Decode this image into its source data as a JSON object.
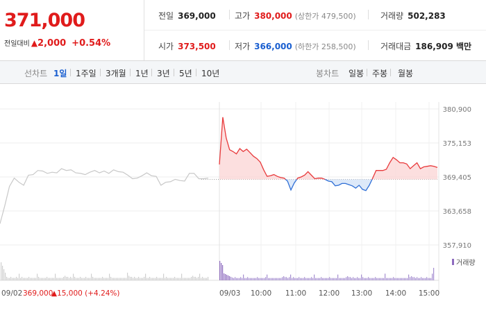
{
  "summary": {
    "price": "371,000",
    "change_label": "전일대비",
    "change_arrow": "▲",
    "change_value": "2,000",
    "change_pct": "+0.54%"
  },
  "stats": {
    "prev_close": {
      "label": "전일",
      "value": "369,000"
    },
    "high": {
      "label": "고가",
      "value": "380,000",
      "sub": "(상한가 479,500)"
    },
    "volume": {
      "label": "거래량",
      "value": "502,283"
    },
    "open": {
      "label": "시가",
      "value": "373,500"
    },
    "low": {
      "label": "저가",
      "value": "366,000",
      "sub": "(하한가 258,500)"
    },
    "amount": {
      "label": "거래대금",
      "value": "186,909 백만"
    }
  },
  "line_tabs": {
    "label": "선차트",
    "items": [
      "1일",
      "1주일",
      "3개월",
      "1년",
      "3년",
      "5년",
      "10년"
    ],
    "active": "1일"
  },
  "candle_tabs": {
    "label": "봉차트",
    "items": [
      "일봉",
      "주봉",
      "월봉"
    ]
  },
  "chart_data": {
    "type": "line",
    "y_ticks": [
      "380,900",
      "375,153",
      "369,405",
      "363,658",
      "357,910"
    ],
    "ylim": [
      357910,
      380900
    ],
    "baseline": 369000,
    "prev_day": {
      "date": "09/02",
      "close_label": "369,000",
      "change_label": "▲15,000 (+4.24%)",
      "values": [
        361500,
        364500,
        367800,
        369200,
        368500,
        368000,
        369700,
        369800,
        370500,
        370400,
        370000,
        370200,
        370100,
        370800,
        370500,
        370600,
        370100,
        370000,
        369800,
        370200,
        370500,
        370100,
        370400,
        370000,
        370600,
        370300,
        370200,
        369700,
        369100,
        369200,
        369600,
        370100,
        369600,
        369500,
        368000,
        368500,
        368600,
        369000,
        368800,
        368700,
        370000,
        370000,
        369100,
        369100,
        369200
      ]
    },
    "today": {
      "date": "09/03",
      "x_ticks": [
        "10:00",
        "11:00",
        "12:00",
        "13:00",
        "14:00",
        "15:00"
      ],
      "values": [
        371500,
        379500,
        376000,
        374000,
        373700,
        373300,
        374200,
        373700,
        374100,
        373500,
        372900,
        372500,
        371900,
        370600,
        369500,
        369600,
        369800,
        369500,
        369300,
        369200,
        368700,
        367200,
        368400,
        369200,
        369400,
        369700,
        370300,
        369700,
        369100,
        369200,
        369200,
        369000,
        368700,
        368600,
        367900,
        368000,
        368300,
        368300,
        368100,
        367900,
        367500,
        368000,
        367300,
        367100,
        368000,
        369200,
        370500,
        370500,
        370500,
        370700,
        371800,
        372700,
        372300,
        371800,
        371800,
        371600,
        370800,
        371300,
        371800,
        370800,
        371100,
        371200,
        371300,
        371200,
        371000
      ]
    },
    "volume_label": "거래량"
  }
}
